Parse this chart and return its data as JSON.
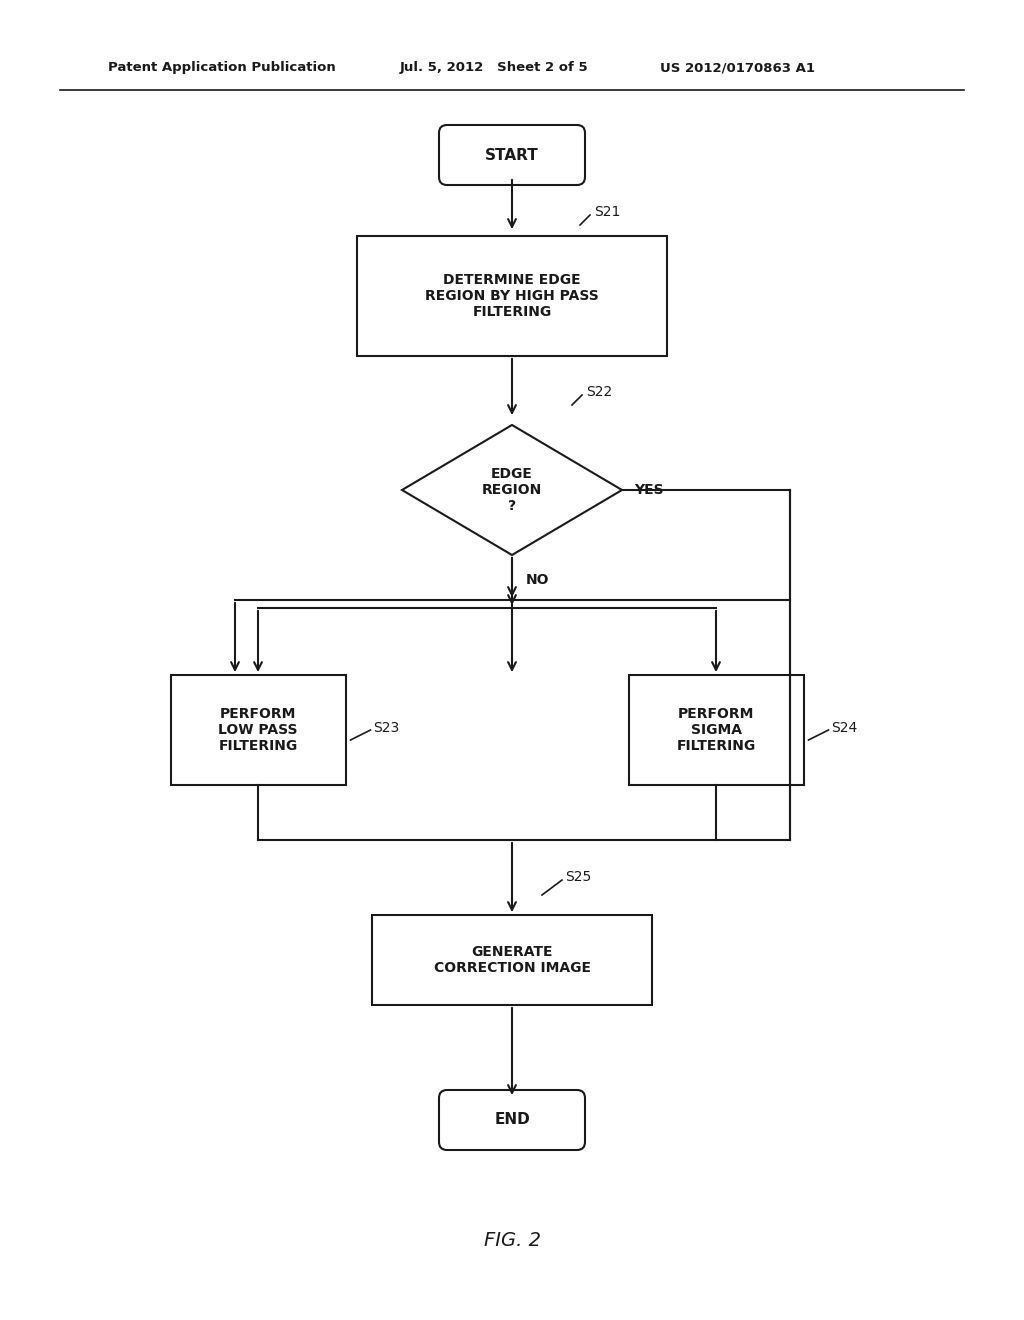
{
  "bg_color": "#ffffff",
  "line_color": "#1a1a1a",
  "text_color": "#1a1a1a",
  "header_left": "Patent Application Publication",
  "header_mid": "Jul. 5, 2012   Sheet 2 of 5",
  "header_right": "US 2012/0170863 A1",
  "figure_label": "FIG. 2",
  "start_label": "START",
  "end_label": "END",
  "s21_label": "DETERMINE EDGE\nREGION BY HIGH PASS\nFILTERING",
  "s22_label": "EDGE\nREGION\n?",
  "s23_label": "PERFORM\nLOW PASS\nFILTERING",
  "s24_label": "PERFORM\nSIGMA\nFILTERING",
  "s25_label": "GENERATE\nCORRECTION IMAGE",
  "yes_text": "YES",
  "no_text": "NO",
  "step_ref_s21": "S21",
  "step_ref_s22": "S22",
  "step_ref_s23": "S23",
  "step_ref_s24": "S24",
  "step_ref_s25": "S25",
  "font_size_node": 10,
  "font_size_ref": 10,
  "font_size_header": 9.5,
  "font_size_fig": 14
}
